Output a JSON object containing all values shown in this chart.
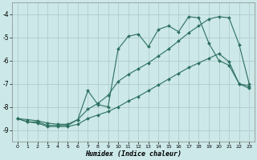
{
  "xlabel": "Humidex (Indice chaleur)",
  "background_color": "#cce8e8",
  "grid_color": "#b0cccc",
  "line_color": "#2d7060",
  "xlim": [
    -0.5,
    23.5
  ],
  "ylim": [
    -9.5,
    -3.5
  ],
  "yticks": [
    -9,
    -8,
    -7,
    -6,
    -5,
    -4
  ],
  "xticks": [
    0,
    1,
    2,
    3,
    4,
    5,
    6,
    7,
    8,
    9,
    10,
    11,
    12,
    13,
    14,
    15,
    16,
    17,
    18,
    19,
    20,
    21,
    22,
    23
  ],
  "series": [
    {
      "x": [
        0,
        1,
        2,
        3,
        4,
        5,
        6,
        7,
        8,
        9,
        10,
        11,
        12,
        13,
        14,
        15,
        16,
        17,
        18,
        19,
        20,
        21,
        22,
        23
      ],
      "y": [
        -8.5,
        -8.65,
        -8.65,
        -8.8,
        -8.8,
        -8.8,
        -8.55,
        -7.3,
        -7.9,
        -8.0,
        -5.5,
        -4.95,
        -4.85,
        -5.4,
        -4.65,
        -4.5,
        -4.75,
        -4.1,
        -4.15,
        -5.25,
        -6.0,
        -6.2,
        -7.0,
        -7.1
      ]
    },
    {
      "x": [
        0,
        1,
        2,
        3,
        4,
        5,
        6,
        7,
        8,
        9,
        10,
        11,
        12,
        13,
        14,
        15,
        16,
        17,
        18,
        19,
        20,
        21,
        22,
        23
      ],
      "y": [
        -8.5,
        -8.55,
        -8.6,
        -8.7,
        -8.75,
        -8.75,
        -8.55,
        -8.1,
        -7.85,
        -7.5,
        -6.9,
        -6.6,
        -6.35,
        -6.1,
        -5.8,
        -5.5,
        -5.15,
        -4.8,
        -4.5,
        -4.2,
        -4.1,
        -4.15,
        -5.3,
        -7.0
      ]
    },
    {
      "x": [
        0,
        1,
        2,
        3,
        4,
        5,
        6,
        7,
        8,
        9,
        10,
        11,
        12,
        13,
        14,
        15,
        16,
        17,
        18,
        19,
        20,
        21,
        22,
        23
      ],
      "y": [
        -8.5,
        -8.65,
        -8.7,
        -8.85,
        -8.85,
        -8.85,
        -8.75,
        -8.5,
        -8.35,
        -8.2,
        -8.0,
        -7.75,
        -7.55,
        -7.3,
        -7.05,
        -6.8,
        -6.55,
        -6.3,
        -6.1,
        -5.9,
        -5.7,
        -6.05,
        -7.0,
        -7.2
      ]
    }
  ]
}
